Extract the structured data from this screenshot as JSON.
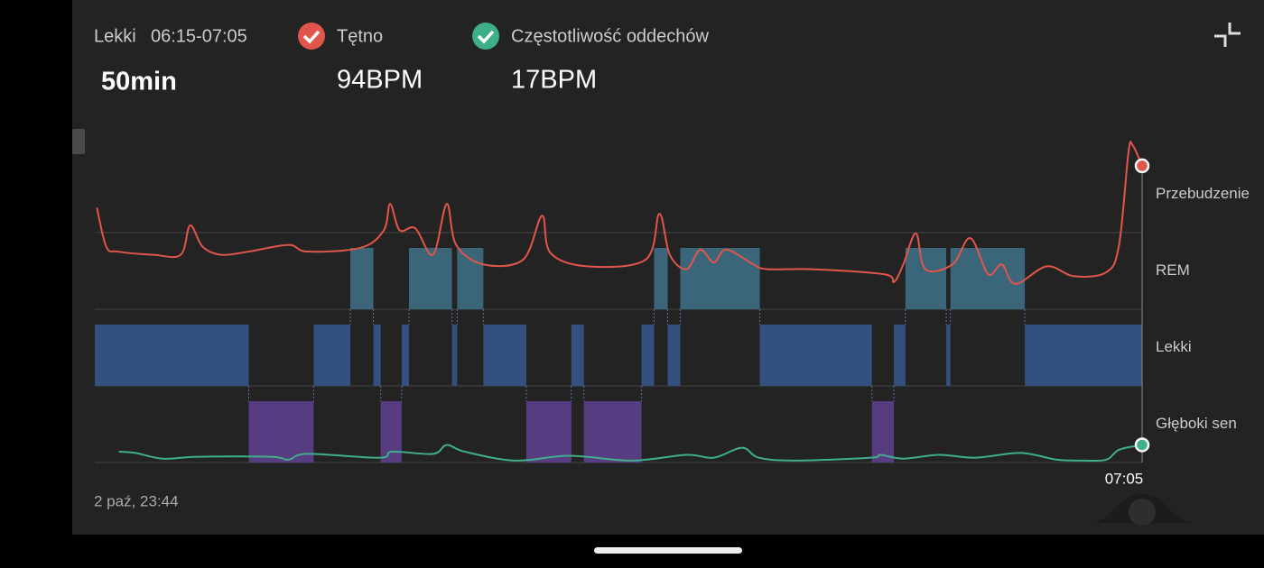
{
  "header": {
    "stage": "Lekki",
    "time_range": "06:15-07:05",
    "duration": "50min",
    "metrics": [
      {
        "name": "Tętno",
        "value": "94BPM"
      },
      {
        "name": "Częstotliwość oddechów",
        "value": "17BPM"
      }
    ]
  },
  "chart_data": {
    "type": "hypnogram",
    "stages": [
      {
        "label": "Przebudzenie"
      },
      {
        "label": "REM",
        "color": "#3b6679"
      },
      {
        "label": "Lekki",
        "color": "#33507f"
      },
      {
        "label": "Głęboki sen",
        "color": "#573c82"
      }
    ],
    "xlim": [
      0,
      100
    ],
    "ylim": [
      0,
      100
    ],
    "segments": [
      {
        "stage": 2,
        "start": 0,
        "end": 14.7
      },
      {
        "stage": 3,
        "start": 14.7,
        "end": 20.9
      },
      {
        "stage": 2,
        "start": 20.9,
        "end": 24.4
      },
      {
        "stage": 1,
        "start": 24.4,
        "end": 26.6
      },
      {
        "stage": 2,
        "start": 26.6,
        "end": 27.3
      },
      {
        "stage": 3,
        "start": 27.3,
        "end": 29.3
      },
      {
        "stage": 2,
        "start": 29.3,
        "end": 30.0
      },
      {
        "stage": 1,
        "start": 30.0,
        "end": 34.1
      },
      {
        "stage": 2,
        "start": 34.1,
        "end": 34.6
      },
      {
        "stage": 1,
        "start": 34.6,
        "end": 37.1
      },
      {
        "stage": 2,
        "start": 37.1,
        "end": 41.2
      },
      {
        "stage": 3,
        "start": 41.2,
        "end": 45.5
      },
      {
        "stage": 2,
        "start": 45.5,
        "end": 46.7
      },
      {
        "stage": 3,
        "start": 46.7,
        "end": 52.2
      },
      {
        "stage": 2,
        "start": 52.2,
        "end": 53.4
      },
      {
        "stage": 1,
        "start": 53.4,
        "end": 54.7
      },
      {
        "stage": 2,
        "start": 54.7,
        "end": 55.9
      },
      {
        "stage": 1,
        "start": 55.9,
        "end": 63.5
      },
      {
        "stage": 2,
        "start": 63.5,
        "end": 74.2
      },
      {
        "stage": 3,
        "start": 74.2,
        "end": 76.3
      },
      {
        "stage": 2,
        "start": 76.3,
        "end": 77.4
      },
      {
        "stage": 1,
        "start": 77.4,
        "end": 81.3
      },
      {
        "stage": 2,
        "start": 81.3,
        "end": 81.7
      },
      {
        "stage": 1,
        "start": 81.7,
        "end": 88.8
      },
      {
        "stage": 2,
        "start": 88.8,
        "end": 100
      }
    ],
    "series": [
      {
        "color": "#e0564a",
        "x": [
          0.2,
          1.1,
          2.2,
          5.6,
          8.2,
          9.1,
          10.3,
          12.1,
          14.7,
          18.5,
          20.3,
          25.4,
          27.6,
          28.2,
          29.1,
          30.6,
          32.3,
          33.6,
          34.5,
          37.1,
          40.9,
          42.7,
          43.5,
          47.0,
          52.6,
          53.9,
          54.9,
          56.5,
          57.8,
          59.1,
          60.3,
          62.9,
          64.2,
          68.5,
          75.4,
          76.3,
          77.2,
          78.4,
          79.3,
          81.9,
          83.6,
          85.3,
          86.6,
          87.9,
          90.9,
          93.5,
          96.6,
          97.8,
          98.7,
          99.1,
          100
        ],
        "values": [
          79.6,
          67.4,
          65.9,
          64.9,
          64.9,
          74.1,
          67.4,
          64.9,
          65.9,
          68.0,
          65.9,
          67.1,
          72.6,
          80.8,
          72.6,
          73.2,
          64.9,
          80.8,
          68.0,
          61.9,
          63.4,
          77.1,
          65.5,
          61.3,
          63.4,
          77.7,
          64.9,
          60.4,
          66.5,
          62.5,
          66.5,
          61.9,
          60.4,
          60.4,
          58.8,
          56.4,
          61.9,
          71.6,
          60.4,
          61.9,
          70.1,
          58.8,
          61.9,
          55.8,
          61.3,
          58.2,
          59.5,
          68.0,
          97.0,
          99.1,
          92.7
        ]
      },
      {
        "color": "#3fae8a",
        "x": [
          2.3,
          3.9,
          6.5,
          9.9,
          16.8,
          18.5,
          20.3,
          27.2,
          28.4,
          32.3,
          33.6,
          35.3,
          40.1,
          45.3,
          51.3,
          56.5,
          59.1,
          61.8,
          63.4,
          66.8,
          74.1,
          75.0,
          77.2,
          80.6,
          84.1,
          88.4,
          91.8,
          94.4,
          96.6,
          97.8,
          100
        ],
        "values": [
          3.4,
          3.0,
          1.2,
          1.8,
          1.8,
          0.9,
          2.7,
          1.5,
          3.4,
          2.7,
          5.5,
          3.4,
          0.6,
          2.1,
          0.6,
          2.4,
          1.5,
          4.6,
          1.5,
          0.6,
          1.5,
          2.4,
          1.2,
          2.4,
          1.5,
          3.0,
          0.9,
          0.6,
          0.9,
          4.0,
          5.5
        ]
      }
    ],
    "x_end_label": "07:05"
  },
  "footer": {
    "date": "2 paź, 23:44"
  }
}
